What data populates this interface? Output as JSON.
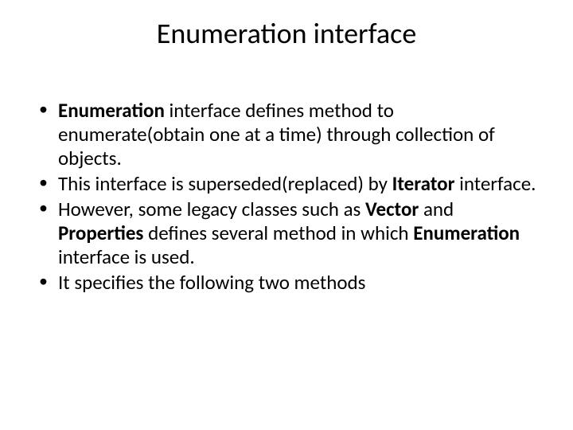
{
  "slide": {
    "title": "Enumeration interface",
    "bullets": [
      {
        "segments": [
          {
            "t": "Enumeration",
            "b": true
          },
          {
            "t": " interface defines method to enumerate(obtain one at a time) through collection of objects.",
            "b": false
          }
        ]
      },
      {
        "segments": [
          {
            "t": "This interface is superseded(replaced) by ",
            "b": false
          },
          {
            "t": "Iterator",
            "b": true
          },
          {
            "t": " interface.",
            "b": false
          }
        ]
      },
      {
        "segments": [
          {
            "t": "However, some legacy classes such as ",
            "b": false
          },
          {
            "t": "Vector",
            "b": true
          },
          {
            "t": " and ",
            "b": false
          },
          {
            "t": "Properties",
            "b": true
          },
          {
            "t": " defines several method in which ",
            "b": false
          },
          {
            "t": "Enumeration",
            "b": true
          },
          {
            "t": " interface is used.",
            "b": false
          }
        ]
      },
      {
        "segments": [
          {
            "t": "It specifies the following two methods",
            "b": false
          }
        ]
      }
    ]
  },
  "style": {
    "background_color": "#ffffff",
    "text_color": "#000000",
    "title_fontsize": 36,
    "title_fontweight": 400,
    "body_fontsize": 25,
    "body_lineheight": 1.2,
    "font_family": "Calibri",
    "slide_width": 720,
    "slide_height": 540,
    "bullet_glyph": "•"
  }
}
